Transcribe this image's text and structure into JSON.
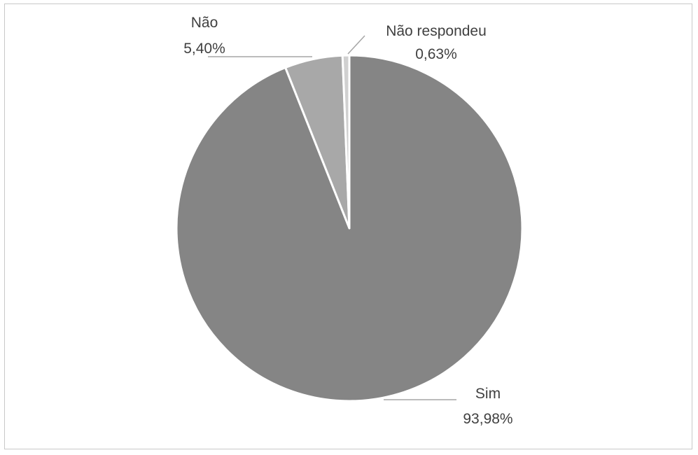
{
  "chart_data": {
    "type": "pie",
    "title": "",
    "slices": [
      {
        "label": "Sim",
        "value": 93.98,
        "value_label": "93,98%",
        "color": "#858585"
      },
      {
        "label": "Não",
        "value": 5.4,
        "value_label": "5,40%",
        "color": "#a8a8a8"
      },
      {
        "label": "Não respondeu",
        "value": 0.63,
        "value_label": "0,63%",
        "color": "#d0d0d0"
      }
    ],
    "start": "12 o'clock",
    "direction": "clockwise",
    "legend": "none",
    "data_labels": "outside with leader lines"
  },
  "colors": {
    "slice_border": "#ffffff",
    "leader_line": "#a6a6a6",
    "text": "#404040",
    "frame_border": "#c8c8c8"
  }
}
